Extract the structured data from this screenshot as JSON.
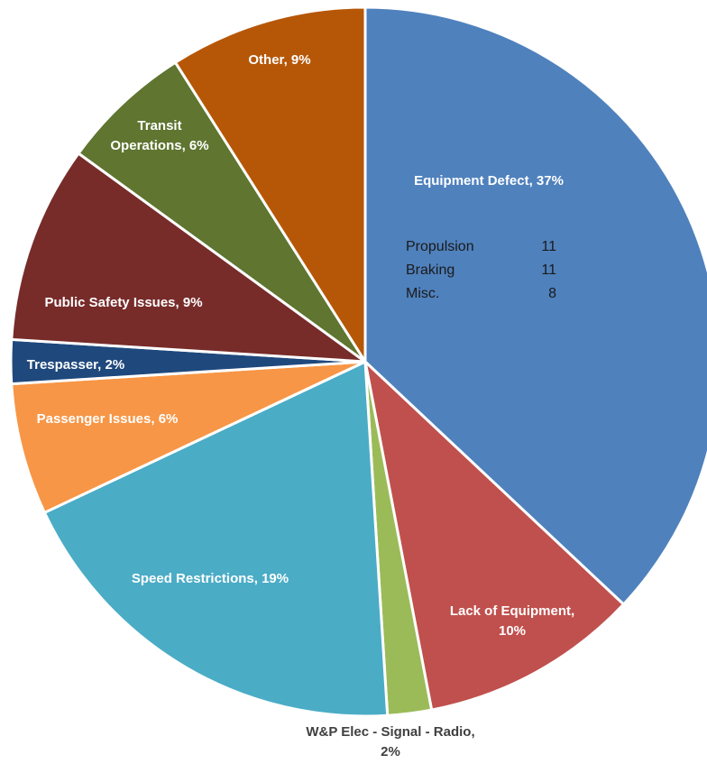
{
  "chart_data": {
    "type": "pie",
    "title": "",
    "slices": [
      {
        "label": "Equipment Defect",
        "value": 37,
        "color": "#4f81bd"
      },
      {
        "label": "Lack of Equipment",
        "value": 10,
        "color": "#c0504d"
      },
      {
        "label": "W&P Elec - Signal - Radio",
        "value": 2,
        "color": "#9bbb59"
      },
      {
        "label": "Speed Restrictions",
        "value": 19,
        "color": "#4bacc6"
      },
      {
        "label": "Passenger Issues",
        "value": 6,
        "color": "#f79646"
      },
      {
        "label": "Trespasser",
        "value": 2,
        "color": "#1f497d"
      },
      {
        "label": "Public Safety Issues",
        "value": 9,
        "color": "#772c2a"
      },
      {
        "label": "Transit Operations",
        "value": 6,
        "color": "#5f7530"
      },
      {
        "label": "Other",
        "value": 9,
        "color": "#b65708"
      }
    ],
    "data_labels": [
      {
        "lines": [
          "Equipment Defect, 37%"
        ]
      },
      {
        "lines": [
          "Lack of Equipment,",
          "10%"
        ]
      },
      {
        "lines": [
          "W&P Elec - Signal - Radio,",
          "2%"
        ]
      },
      {
        "lines": [
          "Speed Restrictions, 19%"
        ]
      },
      {
        "lines": [
          "Passenger Issues, 6%"
        ]
      },
      {
        "lines": [
          "Trespasser, 2%"
        ]
      },
      {
        "lines": [
          "Public Safety Issues, 9%"
        ]
      },
      {
        "lines": [
          "Transit",
          "Operations, 6%"
        ]
      },
      {
        "lines": [
          "Other, 9%"
        ]
      }
    ],
    "annotation": {
      "rows": [
        {
          "label": "Propulsion",
          "value": "11"
        },
        {
          "label": "Braking",
          "value": "11"
        },
        {
          "label": "Misc.",
          "value": "8"
        }
      ]
    }
  }
}
